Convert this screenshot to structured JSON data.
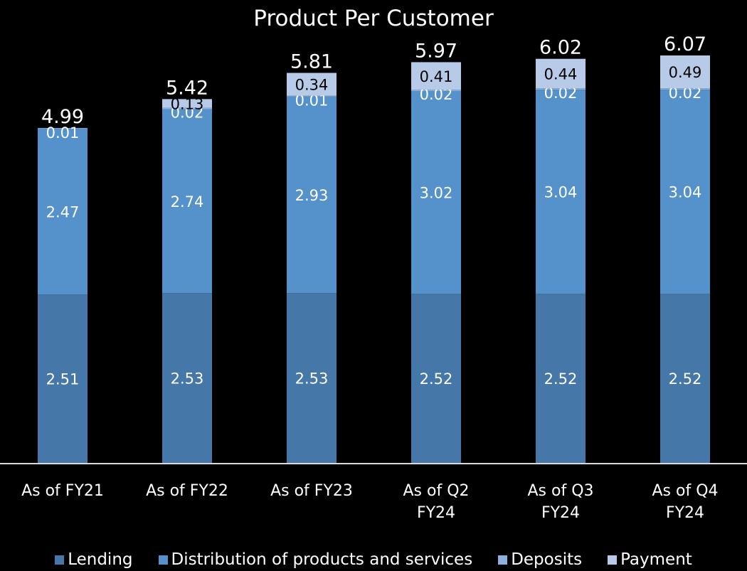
{
  "chart_data": {
    "type": "bar",
    "stacked": true,
    "title": "Product Per Customer",
    "categories": [
      [
        "As of FY21"
      ],
      [
        "As of FY22"
      ],
      [
        "As of FY23"
      ],
      [
        "As of Q2",
        "FY24"
      ],
      [
        "As of Q3",
        "FY24"
      ],
      [
        "As of Q4",
        "FY24"
      ]
    ],
    "series": [
      {
        "name": "Lending",
        "color": "#4577a8",
        "values": [
          2.51,
          2.53,
          2.53,
          2.52,
          2.52,
          2.52
        ]
      },
      {
        "name": "Distribution of products and services",
        "color": "#5592cb",
        "values": [
          2.47,
          2.74,
          2.93,
          3.02,
          3.04,
          3.04
        ]
      },
      {
        "name": "Deposits",
        "color": "#8cb1dc",
        "values": [
          0.01,
          0.02,
          0.01,
          0.02,
          0.02,
          0.02
        ]
      },
      {
        "name": "Payment",
        "color": "#b7cbe9",
        "values": [
          0,
          0.13,
          0.34,
          0.41,
          0.44,
          0.49
        ]
      }
    ],
    "data_labels": [
      [
        "2.51",
        "2.47",
        "0.01",
        ""
      ],
      [
        "2.53",
        "2.74",
        "0.02",
        "0.13"
      ],
      [
        "2.53",
        "2.93",
        "0.01",
        "0.34"
      ],
      [
        "2.52",
        "3.02",
        "0.02",
        "0.41"
      ],
      [
        "2.52",
        "3.04",
        "0.02",
        "0.44"
      ],
      [
        "2.52",
        "3.04",
        "0.02",
        "0.49"
      ]
    ],
    "totals": [
      "4.99",
      "5.42",
      "5.81",
      "5.97",
      "6.02",
      "6.07"
    ],
    "ylim": [
      0,
      6.8
    ],
    "grid": false,
    "legend_position": "bottom"
  }
}
